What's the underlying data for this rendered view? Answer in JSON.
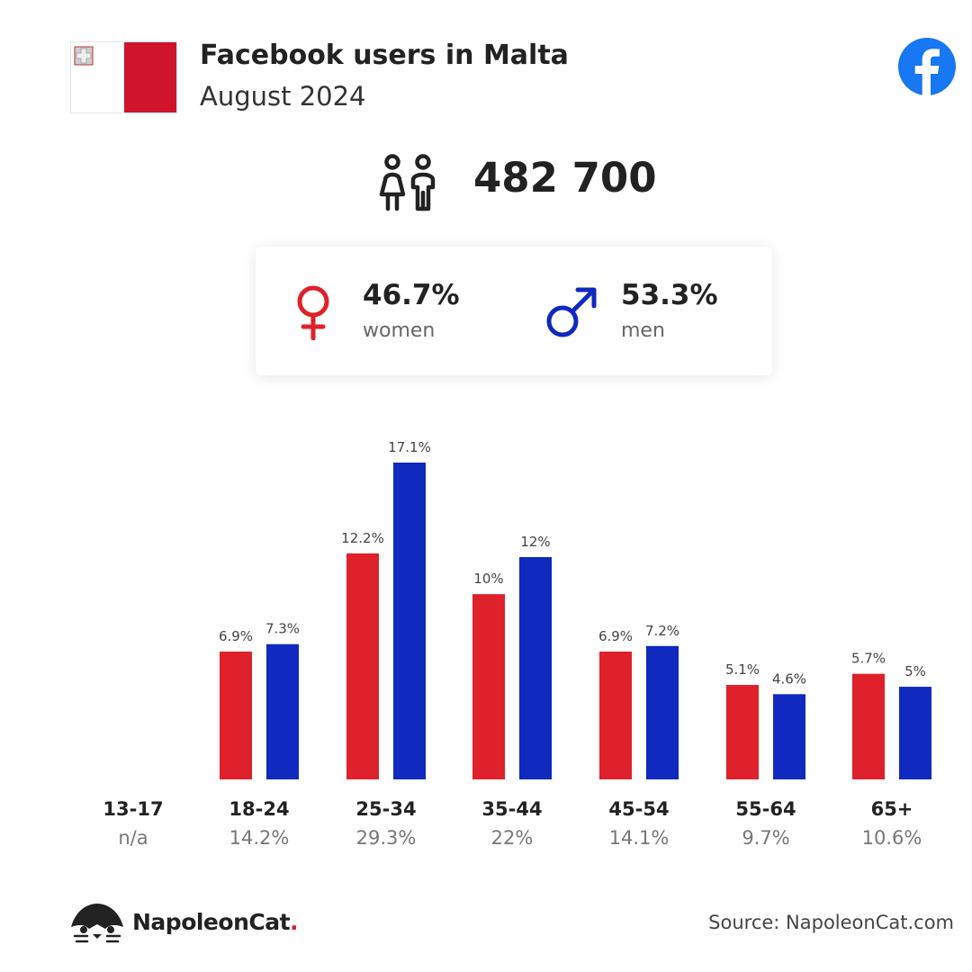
{
  "header": {
    "title": "Facebook users in Malta",
    "subtitle": "August 2024",
    "flag_colors": {
      "white": "#ffffff",
      "red": "#cf142b"
    },
    "brand_icon": "facebook-icon",
    "brand_color": "#1877f2"
  },
  "total": {
    "value": "482 700",
    "icon": "people-icon"
  },
  "gender": {
    "women": {
      "pct": "46.7%",
      "label": "women",
      "icon": "female-symbol-icon",
      "color": "#de212a"
    },
    "men": {
      "pct": "53.3%",
      "label": "men",
      "icon": "male-symbol-icon",
      "color": "#1029be"
    }
  },
  "chart_data": {
    "type": "bar",
    "categories": [
      "13-17",
      "18-24",
      "25-34",
      "35-44",
      "45-54",
      "55-64",
      "65+"
    ],
    "category_totals": [
      "n/a",
      "14.2%",
      "29.3%",
      "22%",
      "14.1%",
      "9.7%",
      "10.6%"
    ],
    "series": [
      {
        "values": [
          null,
          6.9,
          12.2,
          10,
          6.9,
          5.1,
          5.7
        ],
        "labels": [
          "",
          "6.9%",
          "12.2%",
          "10%",
          "6.9%",
          "5.1%",
          "5.7%"
        ],
        "color": "#de212a"
      },
      {
        "values": [
          null,
          7.3,
          17.1,
          12,
          7.2,
          4.6,
          5
        ],
        "labels": [
          "",
          "7.3%",
          "17.1%",
          "12%",
          "7.2%",
          "4.6%",
          "5%"
        ],
        "color": "#1029be"
      }
    ],
    "ylim": [
      0,
      17.1
    ],
    "grid": false,
    "legend": "none"
  },
  "footer": {
    "brand_name": "NapoleonCat",
    "brand_dot": ".",
    "logo_icon": "napoleoncat-logo-icon",
    "source": "Source: NapoleonCat.com"
  }
}
